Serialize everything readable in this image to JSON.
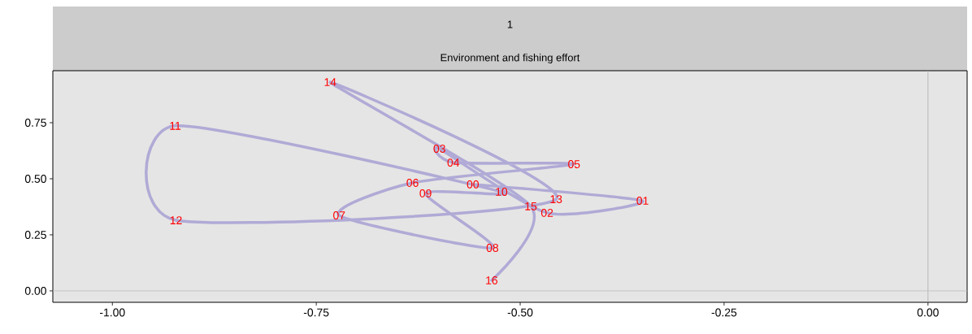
{
  "chart_data": {
    "type": "line",
    "title": "1",
    "subtitle": "Environment and fishing effort",
    "x": [
      -0.558,
      -0.35,
      -0.467,
      -0.599,
      -0.582,
      -0.434,
      -0.632,
      -0.722,
      -0.534,
      -0.616,
      -0.523,
      -0.923,
      -0.922,
      -0.456,
      -0.733,
      -0.487,
      -0.535
    ],
    "values": [
      0.475,
      0.402,
      0.348,
      0.634,
      0.572,
      0.565,
      0.482,
      0.337,
      0.192,
      0.435,
      0.442,
      0.736,
      0.315,
      0.409,
      0.931,
      0.377,
      0.047
    ],
    "color": "#b0aad6",
    "annotations": [
      {
        "text": "00",
        "x": -0.558,
        "y": 0.475
      },
      {
        "text": "01",
        "x": -0.35,
        "y": 0.402
      },
      {
        "text": "02",
        "x": -0.467,
        "y": 0.348
      },
      {
        "text": "03",
        "x": -0.599,
        "y": 0.634
      },
      {
        "text": "04",
        "x": -0.582,
        "y": 0.572
      },
      {
        "text": "05",
        "x": -0.434,
        "y": 0.565
      },
      {
        "text": "06",
        "x": -0.632,
        "y": 0.482
      },
      {
        "text": "07",
        "x": -0.722,
        "y": 0.337
      },
      {
        "text": "08",
        "x": -0.534,
        "y": 0.192
      },
      {
        "text": "09",
        "x": -0.616,
        "y": 0.435
      },
      {
        "text": "10",
        "x": -0.523,
        "y": 0.442
      },
      {
        "text": "11",
        "x": -0.923,
        "y": 0.736
      },
      {
        "text": "12",
        "x": -0.922,
        "y": 0.315
      },
      {
        "text": "13",
        "x": -0.456,
        "y": 0.409
      },
      {
        "text": "14",
        "x": -0.733,
        "y": 0.931
      },
      {
        "text": "15",
        "x": -0.487,
        "y": 0.377
      },
      {
        "text": "16",
        "x": -0.535,
        "y": 0.047
      }
    ],
    "xlim": [
      -1.073,
      0.048
    ],
    "ylim": [
      -0.051,
      0.982
    ],
    "xticks": [
      {
        "value": -1,
        "label": "-1.00"
      },
      {
        "value": -0.75,
        "label": "-0.75"
      },
      {
        "value": -0.5,
        "label": "-0.50"
      },
      {
        "value": -0.25,
        "label": "-0.25"
      },
      {
        "value": 0,
        "label": "0.00"
      }
    ],
    "yticks": [
      {
        "value": 0,
        "label": "0.00"
      },
      {
        "value": 0.25,
        "label": "0.25"
      },
      {
        "value": 0.5,
        "label": "0.50"
      },
      {
        "value": 0.75,
        "label": "0.75"
      }
    ],
    "ref_lines": [
      {
        "axis": "x",
        "value": 0,
        "color": "#adadad"
      },
      {
        "axis": "y",
        "value": 0,
        "color": "#bdbdbd"
      }
    ]
  }
}
